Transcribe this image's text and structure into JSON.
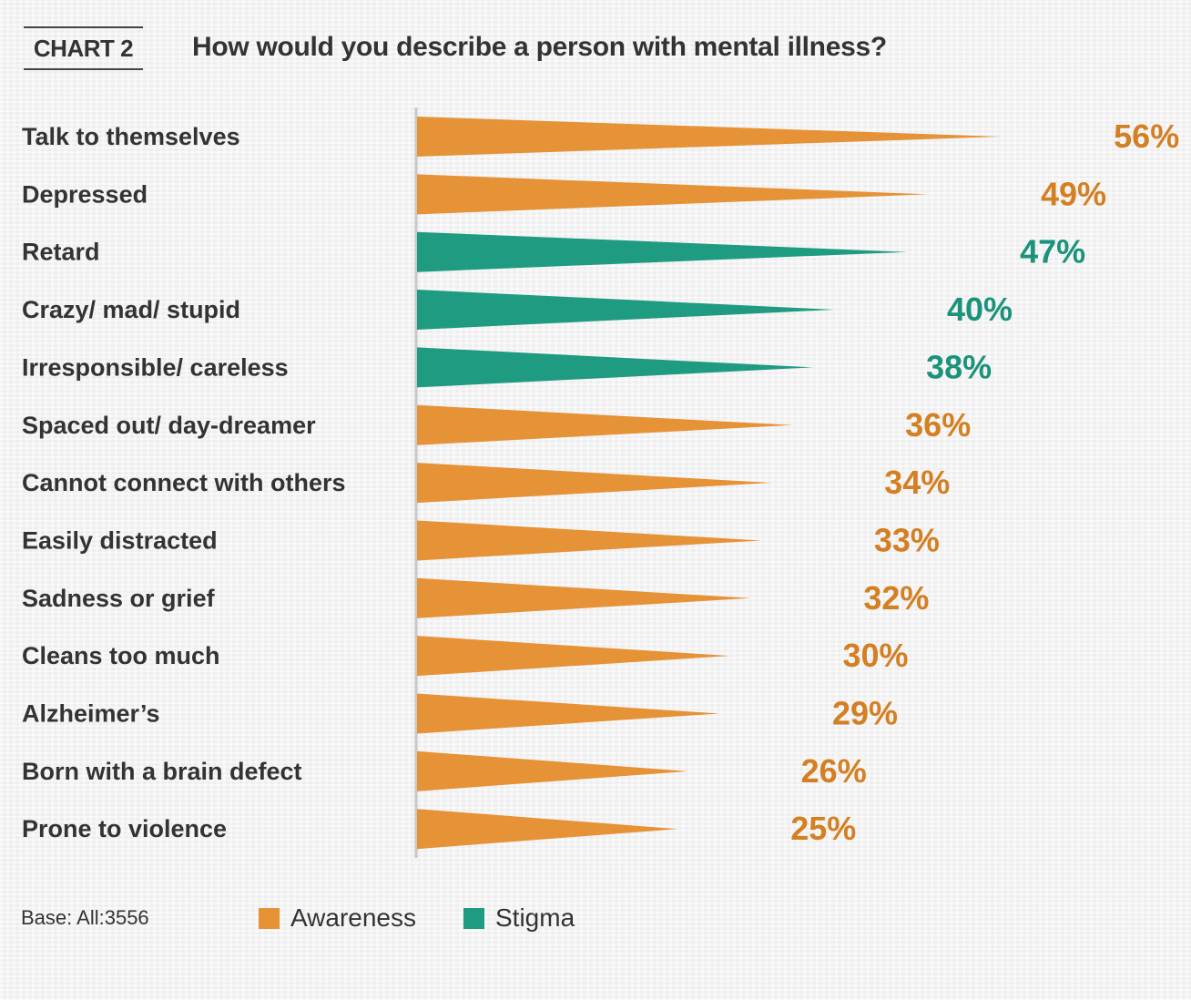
{
  "header": {
    "chart_tag": "CHART 2",
    "title": "How would you describe a person with mental illness?"
  },
  "colors": {
    "Awareness": "#e69236",
    "Stigma": "#1e9b80",
    "Awareness_text": "#d47f22",
    "Stigma_text": "#1a937a"
  },
  "footer": {
    "base_note": "Base: All:3556"
  },
  "chart_data": {
    "type": "bar",
    "orientation": "horizontal",
    "title": "How would you describe a person with mental illness?",
    "xlabel": "",
    "ylabel": "",
    "unit": "%",
    "xlim": [
      0,
      56
    ],
    "grid": false,
    "legend": {
      "placement": "bottom-left",
      "entries": [
        "Awareness",
        "Stigma"
      ]
    },
    "categories": [
      "Talk to themselves",
      "Depressed",
      "Retard",
      "Crazy/ mad/ stupid",
      "Irresponsible/ careless",
      "Spaced out/ day-dreamer",
      "Cannot connect with others",
      "Easily distracted",
      "Sadness or grief",
      "Cleans too much",
      "Alzheimer’s",
      "Born with a brain defect",
      "Prone to violence"
    ],
    "values": [
      56,
      49,
      47,
      40,
      38,
      36,
      34,
      33,
      32,
      30,
      29,
      26,
      25
    ],
    "groups": [
      "Awareness",
      "Awareness",
      "Stigma",
      "Stigma",
      "Stigma",
      "Awareness",
      "Awareness",
      "Awareness",
      "Awareness",
      "Awareness",
      "Awareness",
      "Awareness",
      "Awareness"
    ],
    "data_labels": [
      "56%",
      "49%",
      "47%",
      "40%",
      "38%",
      "36%",
      "34%",
      "33%",
      "32%",
      "30%",
      "29%",
      "26%",
      "25%"
    ]
  }
}
